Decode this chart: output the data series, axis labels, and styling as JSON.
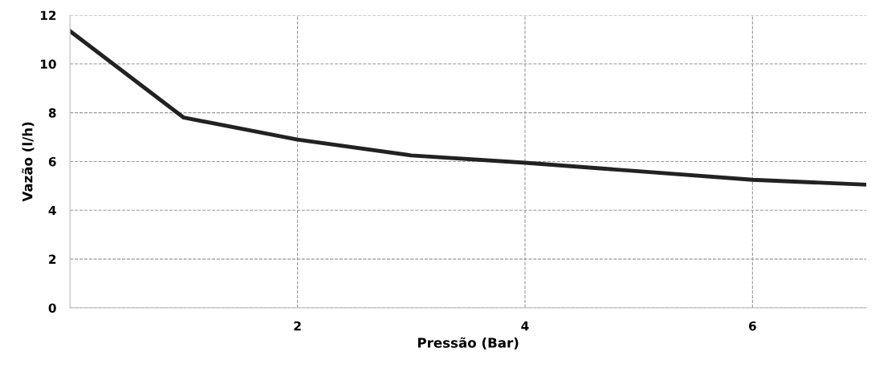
{
  "chart_data": {
    "type": "line",
    "xlabel": "Pressão (Bar)",
    "ylabel": "Vazão (l/h)",
    "x": [
      0,
      1,
      2,
      3,
      4,
      5,
      6,
      7
    ],
    "series": [
      {
        "color": "#222222",
        "values": [
          11.35,
          7.8,
          6.9,
          6.25,
          5.95,
          5.6,
          5.25,
          5.05
        ]
      }
    ],
    "xlim": [
      0,
      7
    ],
    "xticks": [
      2,
      4,
      6
    ],
    "ylim": [
      0,
      12
    ],
    "yticks": [
      0,
      2,
      4,
      6,
      8,
      10,
      12
    ],
    "grid": true,
    "line_style": "solid",
    "marker": "none"
  }
}
